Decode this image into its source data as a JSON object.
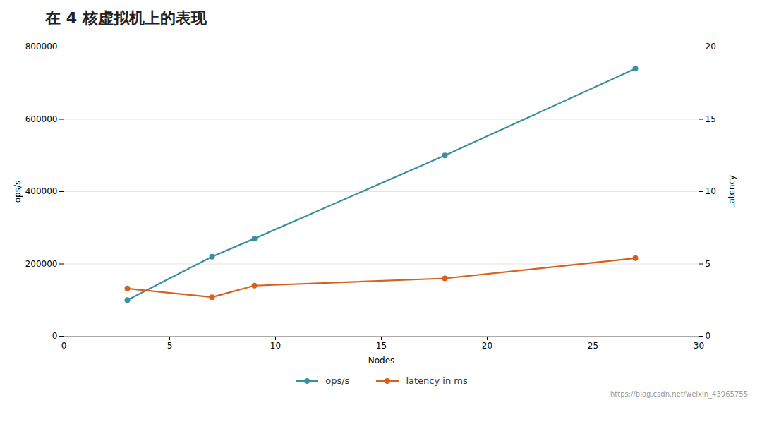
{
  "chart_data": {
    "type": "line",
    "title": "在 4 核虚拟机上的表现",
    "xlabel": "Nodes",
    "ylabel": "ops/s",
    "y2label": "Latency",
    "x": [
      3,
      7,
      9,
      18,
      27
    ],
    "series": [
      {
        "name": "ops/s",
        "color": "#3a8fa0",
        "marker": "circle",
        "values": [
          100000,
          220000,
          270000,
          500000,
          740000
        ]
      },
      {
        "name": "latency in ms",
        "color": "#d95f1e",
        "marker": "circle",
        "axis": "y2",
        "values": [
          3.3,
          2.7,
          3.5,
          4.0,
          5.4
        ]
      }
    ],
    "xlim": [
      0,
      30
    ],
    "xticks": [
      0,
      5,
      10,
      15,
      20,
      25,
      30
    ],
    "ylim": [
      0,
      800000
    ],
    "yticks": [
      0,
      200000,
      400000,
      600000,
      800000
    ],
    "y2lim": [
      0,
      20
    ],
    "y2ticks": [
      0,
      5,
      10,
      15,
      20
    ],
    "grid": true,
    "legend": "bottom",
    "annotations": [
      "https://blog.csdn.net/weixin_43965755"
    ]
  }
}
